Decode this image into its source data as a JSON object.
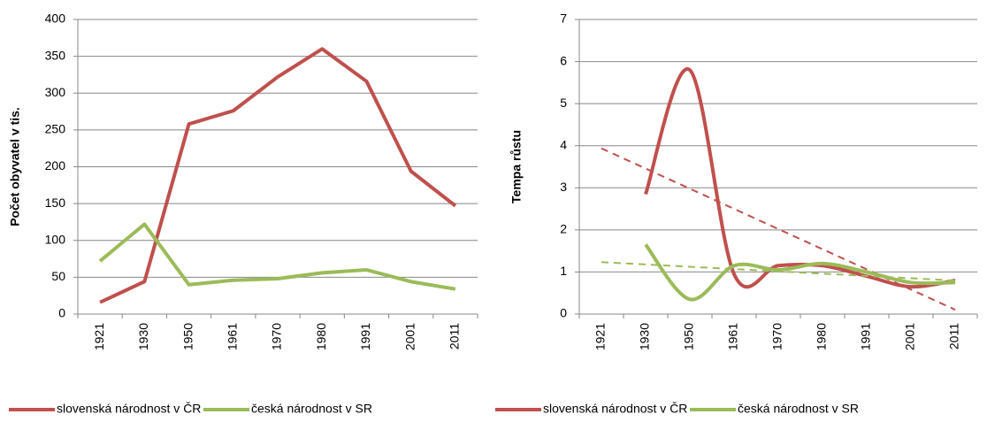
{
  "chart_data": [
    {
      "type": "line",
      "y_label": "Počet obyvatel v tis.",
      "categories": [
        "1921",
        "1930",
        "1950",
        "1961",
        "1970",
        "1980",
        "1991",
        "2001",
        "2011"
      ],
      "series": [
        {
          "name": "slovenská národnost v ČR",
          "color": "#c0504d",
          "values": [
            16,
            44,
            258,
            276,
            322,
            360,
            316,
            194,
            147
          ]
        },
        {
          "name": "česká národnost v SR",
          "color": "#9bbb59",
          "values": [
            72,
            122,
            40,
            46,
            48,
            56,
            60,
            44,
            34
          ]
        }
      ],
      "ylim": [
        0,
        400
      ],
      "yticks": [
        0,
        50,
        100,
        150,
        200,
        250,
        300,
        350,
        400
      ],
      "grid": true,
      "smooth": false,
      "trendline": false,
      "legend": "bottom"
    },
    {
      "type": "line",
      "y_label": "Tempa růstu",
      "categories": [
        "1921",
        "1930",
        "1950",
        "1961",
        "1970",
        "1980",
        "1991",
        "2001",
        "2011"
      ],
      "series": [
        {
          "name": "slovenská národnost v ČR",
          "color": "#c0504d",
          "values": [
            null,
            2.85,
            5.8,
            0.95,
            1.15,
            1.15,
            0.9,
            0.65,
            0.8
          ]
        },
        {
          "name": "česká národnost v SR",
          "color": "#9bbb59",
          "values": [
            null,
            1.65,
            0.35,
            1.15,
            1.05,
            1.2,
            1.0,
            0.75,
            0.75
          ]
        }
      ],
      "ylim": [
        0,
        7
      ],
      "yticks": [
        0,
        1,
        2,
        3,
        4,
        5,
        6,
        7
      ],
      "grid": true,
      "smooth": true,
      "trendline": "linear",
      "legend": "bottom"
    }
  ]
}
